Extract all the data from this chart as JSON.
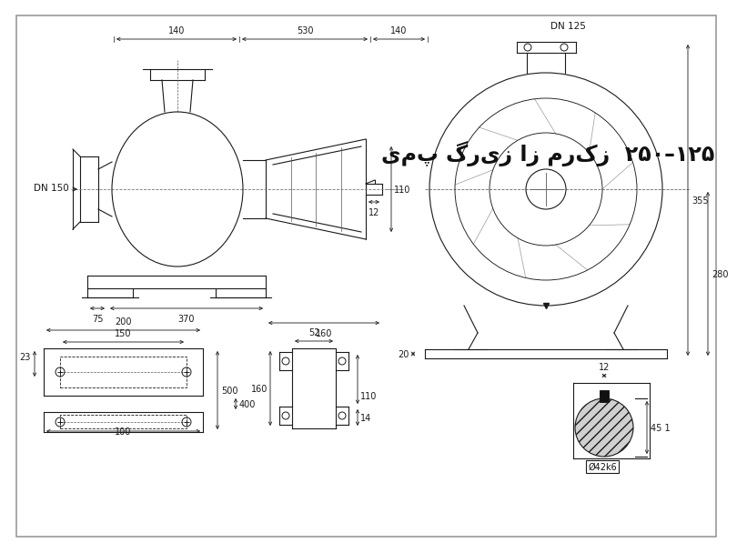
{
  "title": "یمپ گریز از مرکز  ۲۵۰–۱۲۵",
  "bg_color": "#ffffff",
  "lc": "#1a1a1a",
  "lw": 0.8,
  "dims": {
    "140a": "140",
    "530": "530",
    "140b": "140",
    "dn125": "DN 125",
    "dn150": "DN 150",
    "355": "355",
    "280": "280",
    "20": "20",
    "110": "110",
    "12a": "12",
    "75": "75",
    "370": "370",
    "160a": "160",
    "23": "23",
    "150": "150",
    "200": "200",
    "400": "400",
    "500": "500",
    "100": "100",
    "52": "52",
    "160b": "160",
    "14": "14",
    "110b": "110",
    "12b": "12",
    "451": "45 1",
    "phi42": "Ø42k6"
  }
}
